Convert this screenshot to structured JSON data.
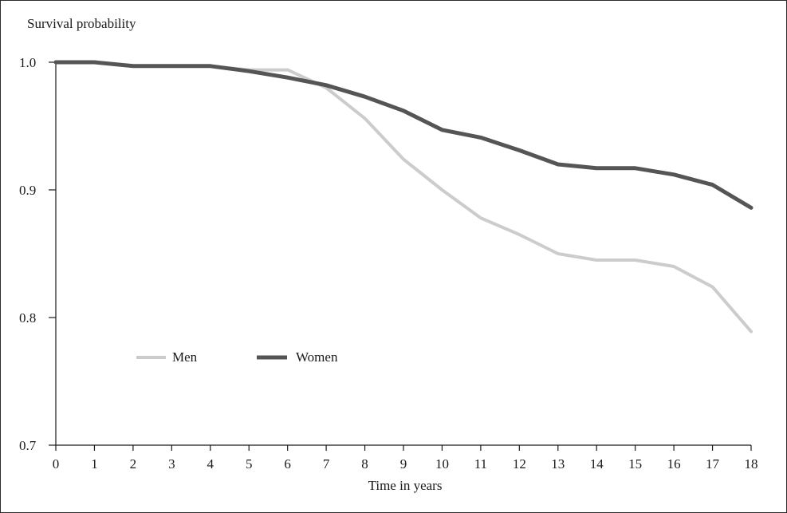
{
  "chart_data": {
    "type": "line",
    "title": "",
    "ylabel": "Survival probability",
    "xlabel": "Time in years",
    "x": [
      0,
      1,
      2,
      3,
      4,
      5,
      6,
      7,
      8,
      9,
      10,
      11,
      12,
      13,
      14,
      15,
      16,
      17,
      18
    ],
    "xlim": [
      0,
      18
    ],
    "ylim": [
      0.7,
      1.0
    ],
    "x_ticks": [
      "0",
      "1",
      "2",
      "3",
      "4",
      "5",
      "6",
      "7",
      "8",
      "9",
      "10",
      "11",
      "12",
      "13",
      "14",
      "15",
      "16",
      "17",
      "18"
    ],
    "y_ticks": [
      "0.7",
      "0.8",
      "0.9",
      "1.0"
    ],
    "grid": false,
    "legend_position": "lower-left",
    "series": [
      {
        "name": "Men",
        "color": "#cccccc",
        "values": [
          1.0,
          1.0,
          0.997,
          0.997,
          0.997,
          0.994,
          0.994,
          0.98,
          0.956,
          0.924,
          0.9,
          0.878,
          0.865,
          0.85,
          0.845,
          0.845,
          0.84,
          0.824,
          0.789
        ]
      },
      {
        "name": "Women",
        "color": "#555555",
        "values": [
          1.0,
          1.0,
          0.997,
          0.997,
          0.997,
          0.993,
          0.988,
          0.982,
          0.973,
          0.962,
          0.947,
          0.941,
          0.931,
          0.92,
          0.917,
          0.917,
          0.912,
          0.904,
          0.886
        ]
      }
    ]
  }
}
